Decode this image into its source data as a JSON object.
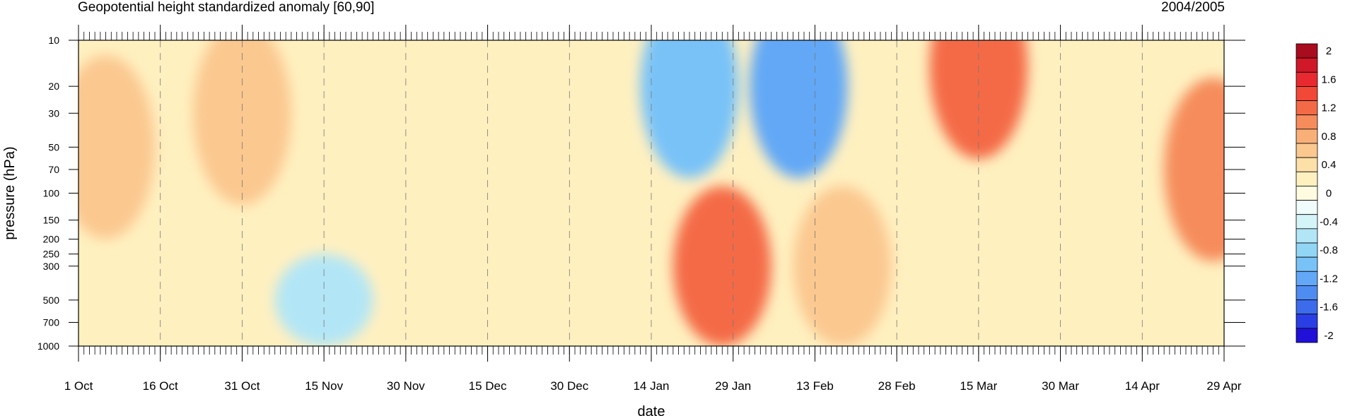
{
  "chart_data": {
    "type": "heatmap",
    "title": "Geopotential height standardized anomaly [60,90]",
    "right_title": "2004/2005",
    "xlabel": "date",
    "ylabel": "pressure (hPa)",
    "x_ticks": [
      "1 Oct",
      "16 Oct",
      "31 Oct",
      "15 Nov",
      "30 Nov",
      "15 Dec",
      "30 Dec",
      "14 Jan",
      "29 Jan",
      "13 Feb",
      "28 Feb",
      "15 Mar",
      "30 Mar",
      "14 Apr",
      "29 Apr"
    ],
    "xlim_days": [
      0,
      210
    ],
    "y_ticks": [
      "10",
      "20",
      "30",
      "50",
      "70",
      "100",
      "150",
      "200",
      "250",
      "300",
      "500",
      "700",
      "1000"
    ],
    "y_scale": "log",
    "ylim": [
      1000,
      10
    ],
    "colorbar_labels": [
      "2",
      "1.6",
      "1.2",
      "0.8",
      "0.4",
      "0",
      "-0.4",
      "-0.8",
      "-1.2",
      "-1.6",
      "-2"
    ],
    "colorbar_levels": [
      -2,
      -1.8,
      -1.6,
      -1.4,
      -1.2,
      -1,
      -0.8,
      -0.6,
      -0.4,
      -0.2,
      0,
      0.2,
      0.4,
      0.6,
      0.8,
      1,
      1.2,
      1.4,
      1.6,
      1.8,
      2
    ],
    "colorbar_colors": [
      "#2010d8",
      "#2a3ee6",
      "#3c6cec",
      "#4f8cf2",
      "#62a8f6",
      "#78c2f8",
      "#92d6f6",
      "#b2e6f6",
      "#d4f4f8",
      "#f0fcfc",
      "#fffbe0",
      "#fff0c0",
      "#fde0a8",
      "#fbc890",
      "#f9b078",
      "#f68c5c",
      "#f46a46",
      "#f24838",
      "#e82a30",
      "#d01828",
      "#a80c1e"
    ],
    "key_points": [
      {
        "day": 5,
        "p": 50,
        "value": 0.6
      },
      {
        "day": 30,
        "p": 30,
        "value": 0.6
      },
      {
        "day": 45,
        "p": 500,
        "value": -0.6
      },
      {
        "day": 112,
        "p": 20,
        "value": -1.0
      },
      {
        "day": 118,
        "p": 300,
        "value": 1.2
      },
      {
        "day": 132,
        "p": 20,
        "value": -1.2
      },
      {
        "day": 140,
        "p": 300,
        "value": 0.6
      },
      {
        "day": 165,
        "p": 15,
        "value": 1.2
      },
      {
        "day": 208,
        "p": 70,
        "value": 1.0
      }
    ]
  }
}
